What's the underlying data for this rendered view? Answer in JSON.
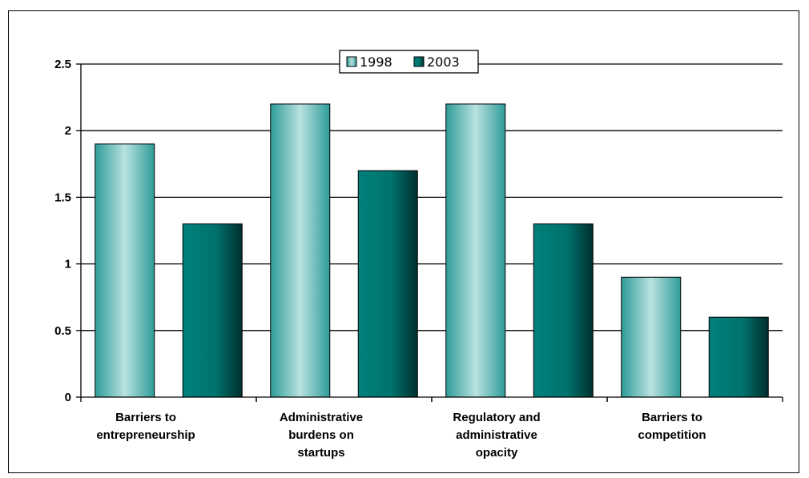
{
  "chart_data": {
    "type": "bar",
    "categories": [
      [
        "Barriers to",
        "entrepreneurship"
      ],
      [
        "Administrative",
        "burdens on",
        "startups"
      ],
      [
        "Regulatory and",
        "administrative",
        "opacity"
      ],
      [
        "Barriers to",
        "competition"
      ]
    ],
    "series": [
      {
        "name": "1998",
        "values": [
          1.9,
          2.2,
          2.2,
          0.9
        ],
        "color": "#a8d8d8"
      },
      {
        "name": "2003",
        "values": [
          1.3,
          1.7,
          1.3,
          0.6
        ],
        "color": "#007a76"
      }
    ],
    "y_ticks": [
      "0",
      "0.5",
      "1",
      "1.5",
      "2",
      "2.5"
    ],
    "ylim": [
      0,
      2.5
    ],
    "grid": true,
    "legend": "top-center"
  }
}
